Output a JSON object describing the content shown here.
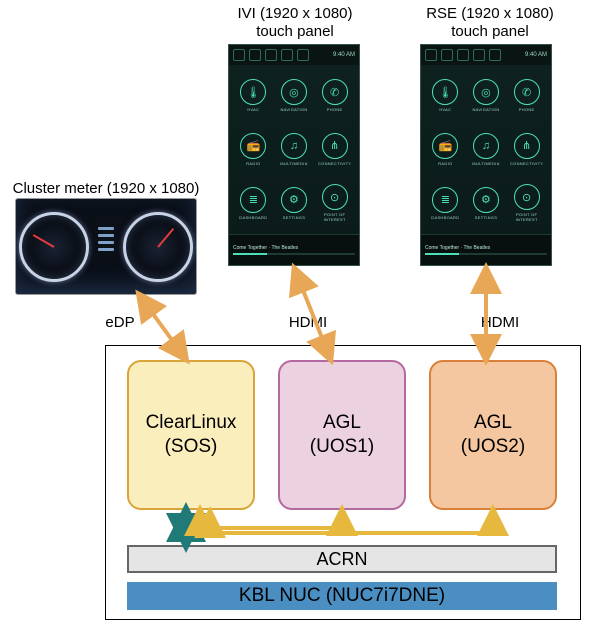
{
  "labels": {
    "cluster_title": "Cluster meter (1920 x 1080)",
    "ivi_title": "IVI (1920 x 1080)",
    "ivi_sub": "touch panel",
    "rse_title": "RSE (1920 x 1080)",
    "rse_sub": "touch panel",
    "edp": "eDP",
    "hdmi1": "HDMI",
    "hdmi2": "HDMI"
  },
  "host": {
    "vm1": {
      "line1": "ClearLinux",
      "line2": "(SOS)",
      "bg": "#fbeebd",
      "border": "#d9a43a"
    },
    "vm2": {
      "line1": "AGL",
      "line2": "(UOS1)",
      "bg": "#ecd2e0",
      "border": "#b26aa0"
    },
    "vm3": {
      "line1": "AGL",
      "line2": "(UOS2)",
      "bg": "#f5c7a0",
      "border": "#d9803a"
    },
    "acrn": "ACRN",
    "hw": "KBL NUC (NUC7i7DNE)",
    "hw_bg": "#4a8ec2",
    "acrn_bg": "#e5e5e5"
  },
  "panel": {
    "time": "9:40 AM",
    "track": "Come Together · The Beatles",
    "items": [
      {
        "glyph": "🌡",
        "label": "HVAC"
      },
      {
        "glyph": "◎",
        "label": "NAVIGATION"
      },
      {
        "glyph": "✆",
        "label": "PHONE"
      },
      {
        "glyph": "📻",
        "label": "RADIO"
      },
      {
        "glyph": "♫",
        "label": "MULTIMEDIA"
      },
      {
        "glyph": "⋔",
        "label": "CONNECTIVITY"
      },
      {
        "glyph": "≣",
        "label": "DASHBOARD"
      },
      {
        "glyph": "⚙",
        "label": "SETTINGS"
      },
      {
        "glyph": "⊙",
        "label": "POINT OF INTEREST"
      }
    ]
  },
  "arrows": {
    "orange": "#e8a756",
    "teal": "#1f7a78"
  }
}
